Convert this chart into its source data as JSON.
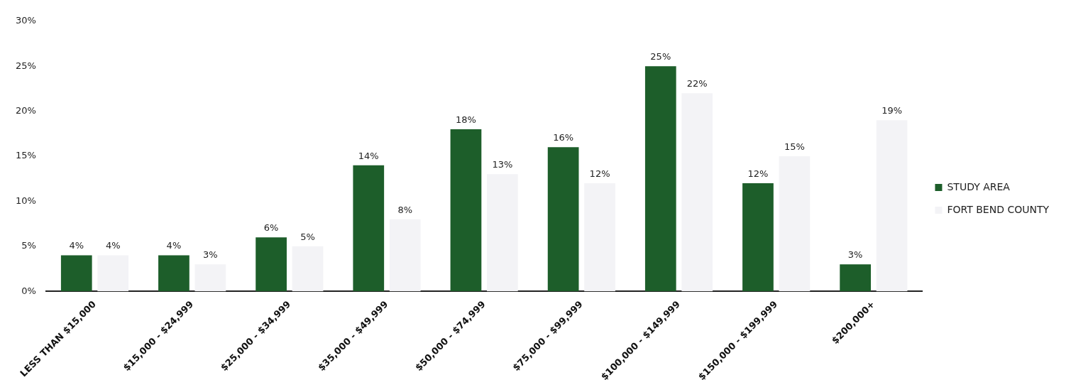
{
  "chart_data": {
    "type": "bar",
    "categories": [
      "LESS THAN $15,000",
      "$15,000 - $24,999",
      "$25,000 - $34,999",
      "$35,000 - $49,999",
      "$50,000 - $74,999",
      "$75,000 - $99,999",
      "$100,000 - $149,999",
      "$150,000 - $199,999",
      "$200,000+"
    ],
    "series": [
      {
        "name": "STUDY AREA",
        "color": "#1d5e2a",
        "values": [
          4,
          4,
          6,
          14,
          18,
          16,
          25,
          12,
          3
        ],
        "value_labels": [
          "4%",
          "4%",
          "6%",
          "14%",
          "18%",
          "16%",
          "25%",
          "12%",
          "3%"
        ]
      },
      {
        "name": "FORT BEND COUNTY",
        "color": "#f3f3f6",
        "values": [
          4,
          3,
          5,
          8,
          13,
          12,
          22,
          15,
          19
        ],
        "value_labels": [
          "4%",
          "3%",
          "5%",
          "8%",
          "13%",
          "12%",
          "22%",
          "15%",
          "19%"
        ]
      }
    ],
    "ylim": [
      0,
      30
    ],
    "yticks": [
      {
        "value": 0,
        "label": "0%"
      },
      {
        "value": 5,
        "label": "5%"
      },
      {
        "value": 10,
        "label": "10%"
      },
      {
        "value": 15,
        "label": "15%"
      },
      {
        "value": 20,
        "label": "20%"
      },
      {
        "value": 25,
        "label": "25%"
      },
      {
        "value": 30,
        "label": "30%"
      }
    ],
    "grid": false,
    "legend": "right"
  }
}
